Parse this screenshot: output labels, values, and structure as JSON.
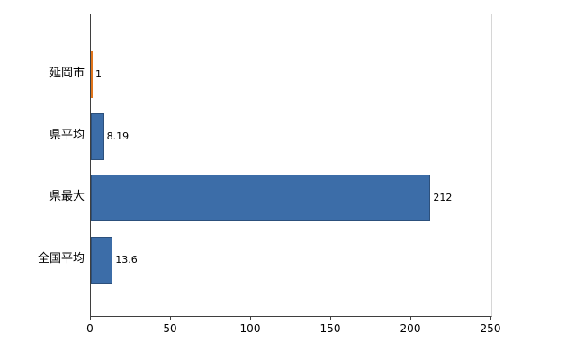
{
  "chart_data": {
    "type": "bar",
    "orientation": "horizontal",
    "title": "",
    "categories": [
      "延岡市",
      "県平均",
      "県最大",
      "全国平均"
    ],
    "values": [
      1,
      8.19,
      212,
      13.6
    ],
    "value_labels": [
      "1",
      "8.19",
      "212",
      "13.6"
    ],
    "bar_colors": [
      "#e0751c",
      "#3c6da8",
      "#3c6da8",
      "#3c6da8"
    ],
    "bar_border_colors": [
      "#a85310",
      "#2c507c",
      "#2c507c",
      "#2c507c"
    ],
    "xlim": [
      0,
      250
    ],
    "x_ticks": [
      0,
      50,
      100,
      150,
      200,
      250
    ],
    "grid": false,
    "legend": null,
    "axis_color": "#3f3f3f",
    "plot_border_color": "#d6d6d6",
    "background_color": "#ffffff"
  }
}
